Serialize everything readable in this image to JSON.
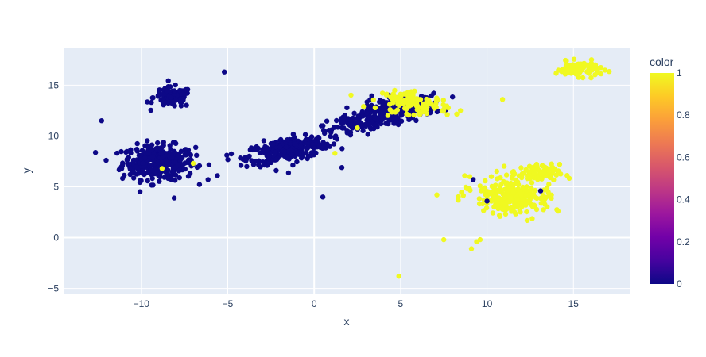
{
  "chart_data": {
    "type": "scatter",
    "title": "",
    "xlabel": "x",
    "ylabel": "y",
    "xlim": [
      -14.5,
      18.3
    ],
    "ylim": [
      -5.5,
      18.7
    ],
    "x_ticks": [
      -10,
      -5,
      0,
      5,
      10,
      15
    ],
    "y_ticks": [
      -5,
      0,
      5,
      10,
      15
    ],
    "x_tick_labels": [
      "−10",
      "−5",
      "0",
      "5",
      "10",
      "15"
    ],
    "y_tick_labels": [
      "−5",
      "0",
      "5",
      "10",
      "15"
    ],
    "grid": true,
    "colorbar": {
      "title": "color",
      "range": [
        0,
        1
      ],
      "ticks": [
        0,
        0.2,
        0.4,
        0.6,
        0.8,
        1
      ],
      "tick_labels": [
        "0",
        "0.2",
        "0.4",
        "0.6",
        "0.8",
        "1"
      ],
      "colorscale": [
        "#0d0887",
        "#46039f",
        "#7201a8",
        "#9c179e",
        "#bd3786",
        "#d8576b",
        "#ed7953",
        "#fb9f3a",
        "#fdca26",
        "#f0f921"
      ]
    },
    "background": "#e5ecf6",
    "clusters": [
      {
        "cx": -9.0,
        "cy": 7.4,
        "sx": 1.05,
        "sy": 0.85,
        "n": 340,
        "color_value": 0
      },
      {
        "cx": -8.2,
        "cy": 13.8,
        "sx": 0.55,
        "sy": 0.5,
        "n": 110,
        "color_value": 0
      },
      {
        "cx": -1.5,
        "cy": 8.7,
        "sx": 1.25,
        "sy": 0.55,
        "rot": 0.32,
        "n": 300,
        "color_value": 0
      },
      {
        "cx": 3.0,
        "cy": 11.5,
        "sx": 1.2,
        "sy": 0.55,
        "rot": 0.5,
        "n": 150,
        "color_value": 0
      },
      {
        "cx": 5.2,
        "cy": 12.9,
        "sx": 1.1,
        "sy": 0.55,
        "rot": 0.1,
        "n": 160,
        "color_value": 0
      },
      {
        "cx": 5.8,
        "cy": 13.2,
        "sx": 1.0,
        "sy": 0.5,
        "rot": -0.2,
        "n": 110,
        "color_value": 1
      },
      {
        "cx": 15.3,
        "cy": 16.6,
        "sx": 0.65,
        "sy": 0.35,
        "n": 100,
        "color_value": 1
      },
      {
        "cx": 11.3,
        "cy": 4.0,
        "sx": 1.05,
        "sy": 0.85,
        "rot": -0.35,
        "n": 250,
        "color_value": 1
      },
      {
        "cx": 12.8,
        "cy": 6.3,
        "sx": 0.7,
        "sy": 0.45,
        "n": 90,
        "color_value": 1
      }
    ],
    "outliers": [
      {
        "x": -12.3,
        "y": 11.5,
        "v": 0
      },
      {
        "x": -5.2,
        "y": 16.3,
        "v": 0
      },
      {
        "x": -5.6,
        "y": 6.1,
        "v": 0
      },
      {
        "x": -3.9,
        "y": 7.0,
        "v": 0
      },
      {
        "x": -8.1,
        "y": 3.9,
        "v": 0
      },
      {
        "x": -11.1,
        "y": 7.1,
        "v": 0
      },
      {
        "x": 0.5,
        "y": 4.0,
        "v": 0
      },
      {
        "x": 1.6,
        "y": 6.9,
        "v": 0
      },
      {
        "x": -2.2,
        "y": 6.6,
        "v": 0
      },
      {
        "x": 9.2,
        "y": 5.7,
        "v": 0
      },
      {
        "x": 10.0,
        "y": 3.6,
        "v": 0
      },
      {
        "x": 13.1,
        "y": 4.6,
        "v": 0
      },
      {
        "x": 10.9,
        "y": 13.6,
        "v": 1
      },
      {
        "x": 4.9,
        "y": -3.8,
        "v": 1
      },
      {
        "x": 7.5,
        "y": -0.2,
        "v": 1
      },
      {
        "x": 9.1,
        "y": -1.1,
        "v": 1
      },
      {
        "x": 9.4,
        "y": -0.4,
        "v": 1
      },
      {
        "x": 9.6,
        "y": -0.2,
        "v": 1
      },
      {
        "x": 7.1,
        "y": 4.2,
        "v": 1
      },
      {
        "x": 9.0,
        "y": 6.0,
        "v": 1
      },
      {
        "x": -8.8,
        "y": 6.8,
        "v": 1
      },
      {
        "x": -7.0,
        "y": 7.3,
        "v": 1
      },
      {
        "x": 1.2,
        "y": 8.3,
        "v": 1
      },
      {
        "x": 2.5,
        "y": 10.8,
        "v": 1
      },
      {
        "x": 7.7,
        "y": 12.1,
        "v": 1
      }
    ]
  }
}
